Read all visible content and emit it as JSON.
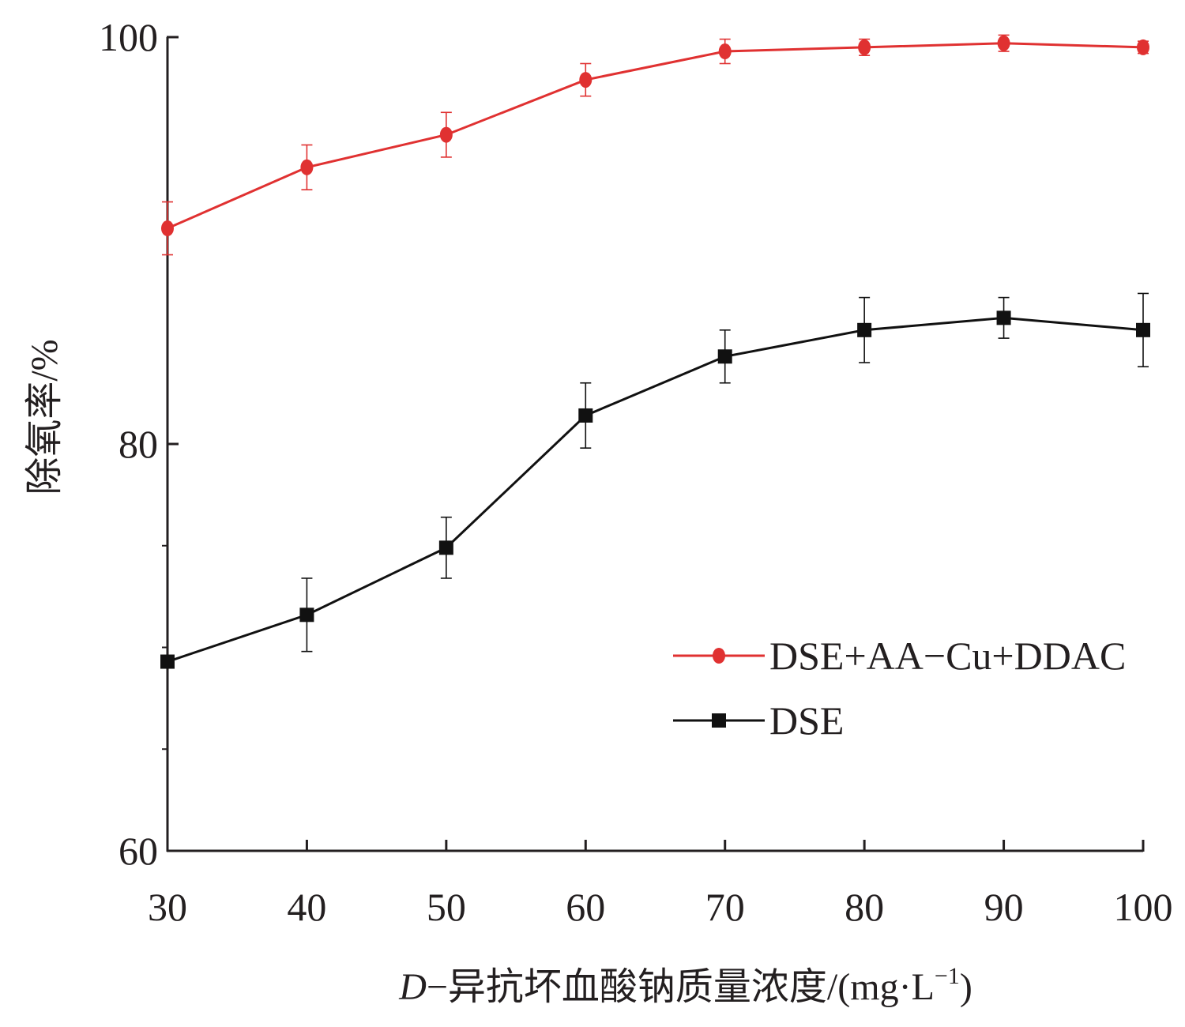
{
  "chart_data": {
    "type": "line",
    "title": "",
    "xlabel_italic": "D",
    "xlabel_rest": "−异抗坏血酸钠质量浓度/(mg·L",
    "xlabel_sup": "−1",
    "xlabel_close": ")",
    "ylabel": "除氧率/%",
    "x": [
      30,
      40,
      50,
      60,
      70,
      80,
      90,
      100
    ],
    "x_tick_labels": [
      "30",
      "40",
      "50",
      "60",
      "70",
      "80",
      "90",
      "100"
    ],
    "xlim": [
      30,
      100
    ],
    "y_tick_labels": [
      "60",
      "80",
      "100"
    ],
    "y_ticks": [
      60,
      80,
      100
    ],
    "ylim": [
      60,
      100
    ],
    "grid": false,
    "legend_position": "right",
    "series": [
      {
        "name": "DSE+AA−Cu+DDAC",
        "color": "#e03131",
        "marker": "circle",
        "values": [
          90.6,
          93.6,
          95.2,
          97.9,
          99.3,
          99.5,
          99.7,
          99.5
        ],
        "errors": [
          1.3,
          1.1,
          1.1,
          0.8,
          0.6,
          0.4,
          0.4,
          0.3
        ]
      },
      {
        "name": "DSE",
        "color": "#111111",
        "marker": "square",
        "values": [
          69.3,
          71.6,
          74.9,
          81.4,
          84.3,
          85.6,
          86.2,
          85.6
        ],
        "errors": [
          0.0,
          1.8,
          1.5,
          1.6,
          1.3,
          1.6,
          1.0,
          1.8
        ]
      }
    ]
  }
}
